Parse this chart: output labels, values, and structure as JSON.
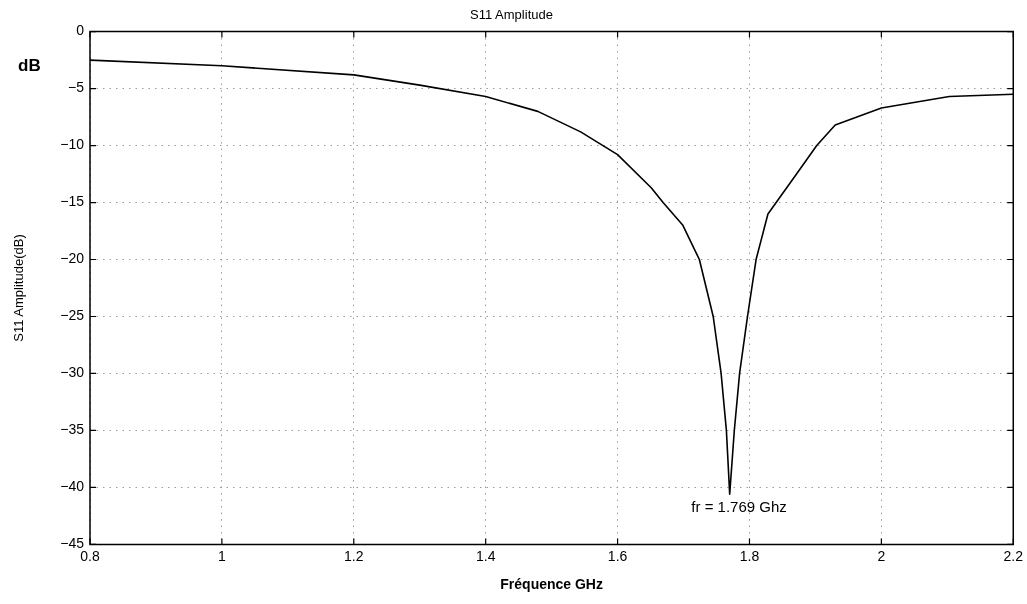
{
  "chart_data": {
    "type": "line",
    "title": "S11 Amplitude",
    "xlabel": "Fréquence GHz",
    "ylabel": "S11 Amplitude(dB)",
    "annotations": [
      "dB",
      {
        "text": "fr = 1.769 Ghz",
        "x": 1.769,
        "y": -40.6
      }
    ],
    "x": [
      0.8,
      1.0,
      1.2,
      1.3,
      1.4,
      1.479,
      1.544,
      1.6,
      1.651,
      1.669,
      1.699,
      1.724,
      1.745,
      1.757,
      1.765,
      1.77,
      1.777,
      1.785,
      1.797,
      1.81,
      1.828,
      1.87,
      1.902,
      1.93,
      2.0,
      2.103,
      2.2
    ],
    "series": [
      {
        "color": "#000000",
        "values": [
          -2.5,
          -3.0,
          -3.8,
          -4.7,
          -5.7,
          -7.0,
          -8.8,
          -10.8,
          -13.7,
          -15,
          -17,
          -20,
          -25,
          -30,
          -35,
          -40.6,
          -35,
          -30,
          -25,
          -20,
          -16,
          -12.6,
          -10,
          -8.2,
          -6.7,
          -5.7,
          -5.5
        ]
      }
    ],
    "xlim": [
      0.8,
      2.2
    ],
    "xticks": [
      0.8,
      1,
      1.2,
      1.4,
      1.6,
      1.8,
      2,
      2.2
    ],
    "ylim": [
      -45,
      0
    ],
    "yticks": [
      -45,
      -40,
      -35,
      -30,
      -25,
      -20,
      -15,
      -10,
      -5,
      0
    ],
    "grid": true,
    "legend": false,
    "marker": "none",
    "line_style": "solid"
  }
}
